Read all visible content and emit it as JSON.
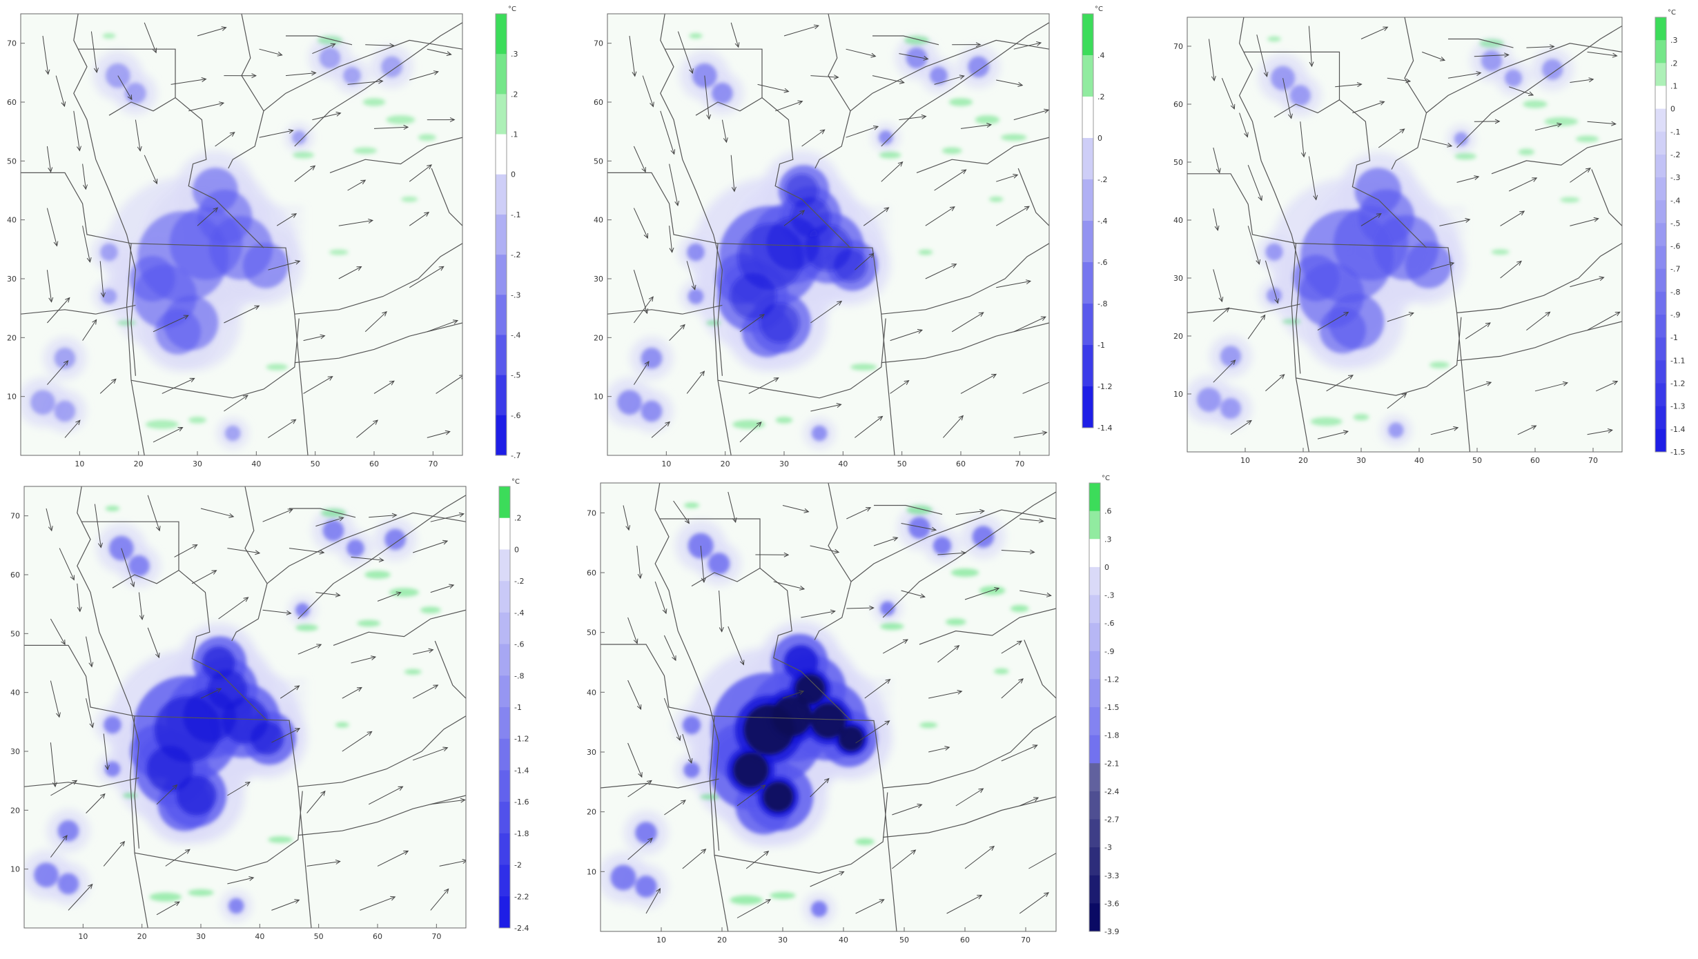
{
  "figure": {
    "unit_label": "°C",
    "x_ticks": [
      "10",
      "20",
      "30",
      "40",
      "50",
      "60",
      "70"
    ],
    "y_ticks": [
      "10",
      "20",
      "30",
      "40",
      "50",
      "60",
      "70"
    ],
    "colors": {
      "positive": "#44dd66",
      "negative_light": "#dcdcf8",
      "negative_mid": "#5555ee",
      "negative_strong": "#1818d8",
      "negative_extreme": "#0a0a55",
      "boundary_lines": "#555555",
      "arrows": "#444444",
      "background": "#f6fbf6"
    },
    "panels": [
      {
        "id": "panel-1",
        "intensity": 0.45,
        "colorbar_ticks": [
          ".3",
          ".2",
          ".1",
          "0",
          "-.1",
          "-.2",
          "-.3",
          "-.4",
          "-.5",
          "-.6",
          "-.7"
        ]
      },
      {
        "id": "panel-2",
        "intensity": 0.75,
        "colorbar_ticks": [
          ".4",
          ".2",
          "0",
          "-.2",
          "-.4",
          "-.6",
          "-.8",
          "-1",
          "-1.2",
          "-1.4"
        ]
      },
      {
        "id": "panel-3",
        "intensity": 0.55,
        "colorbar_ticks": [
          ".3",
          ".2",
          ".1",
          "0",
          "-.1",
          "-.2",
          "-.3",
          "-.4",
          "-.5",
          "-.6",
          "-.7",
          "-.8",
          "-.9",
          "-1",
          "-1.1",
          "-1.2",
          "-1.3",
          "-1.4",
          "-1.5"
        ]
      },
      {
        "id": "panel-4",
        "intensity": 0.9,
        "colorbar_ticks": [
          ".2",
          "0",
          "-.2",
          "-.4",
          "-.6",
          "-.8",
          "-1",
          "-1.2",
          "-1.4",
          "-1.6",
          "-1.8",
          "-2",
          "-2.2",
          "-2.4"
        ]
      },
      {
        "id": "panel-5",
        "intensity": 1.0,
        "colorbar_ticks": [
          ".6",
          ".3",
          "0",
          "-.3",
          "-.6",
          "-.9",
          "-1.2",
          "-1.5",
          "-1.8",
          "-2.1",
          "-2.4",
          "-2.7",
          "-3",
          "-3.3",
          "-3.6",
          "-3.9"
        ]
      }
    ]
  }
}
